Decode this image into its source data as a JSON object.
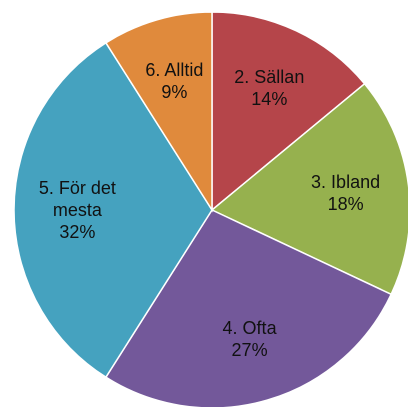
{
  "chart_data": {
    "type": "pie",
    "categories": [
      "2. Sällan",
      "3. Ibland",
      "4. Ofta",
      "5. För det mesta",
      "6. Alltid"
    ],
    "values": [
      14,
      18,
      27,
      32,
      9
    ],
    "value_labels": [
      "14%",
      "18%",
      "27%",
      "32%",
      "9%"
    ],
    "colors": [
      "#b5454a",
      "#96b14e",
      "#73589a",
      "#45a2bf",
      "#e08a3c"
    ]
  }
}
